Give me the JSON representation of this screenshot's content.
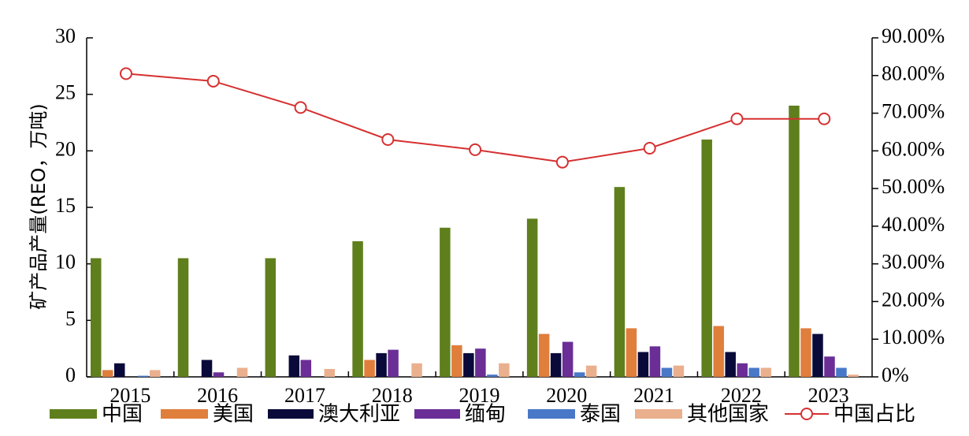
{
  "chart_data": {
    "type": "bar",
    "title": "",
    "xlabel": "",
    "ylabel": "矿产品产量(REO，万吨)",
    "categories": [
      "2015",
      "2016",
      "2017",
      "2018",
      "2019",
      "2020",
      "2021",
      "2022",
      "2023"
    ],
    "ylim": [
      0,
      30
    ],
    "y2lim": [
      0,
      90
    ],
    "yticks": [
      "0",
      "5",
      "10",
      "15",
      "20",
      "25",
      "30"
    ],
    "y2ticks": [
      "0%",
      "10.00%",
      "20.00%",
      "30.00%",
      "40.00%",
      "50.00%",
      "60.00%",
      "70.00%",
      "80.00%",
      "90.00%"
    ],
    "series": [
      {
        "name": "中国",
        "color": "#5f7f1c",
        "values": [
          10.5,
          10.5,
          10.5,
          12.0,
          13.2,
          14.0,
          16.8,
          21.0,
          24.0
        ]
      },
      {
        "name": "美国",
        "color": "#e07e3c",
        "values": [
          0.6,
          0.0,
          0.0,
          1.5,
          2.8,
          3.8,
          4.3,
          4.5,
          4.3
        ]
      },
      {
        "name": "澳大利亚",
        "color": "#0a0a3a",
        "values": [
          1.2,
          1.5,
          1.9,
          2.1,
          2.1,
          2.1,
          2.2,
          2.2,
          3.8
        ]
      },
      {
        "name": "缅甸",
        "color": "#6a2e96",
        "values": [
          0.0,
          0.4,
          1.5,
          2.4,
          2.5,
          3.1,
          2.7,
          1.2,
          1.8
        ]
      },
      {
        "name": "泰国",
        "color": "#4a78c8",
        "values": [
          0.1,
          0.0,
          0.0,
          0.0,
          0.2,
          0.4,
          0.8,
          0.8,
          0.8
        ]
      },
      {
        "name": "其他国家",
        "color": "#eab08e",
        "values": [
          0.6,
          0.8,
          0.7,
          1.2,
          1.2,
          1.0,
          1.0,
          0.8,
          0.2
        ]
      }
    ],
    "line": {
      "name": "中国占比",
      "color": "#d63030",
      "values": [
        80.5,
        78.5,
        71.5,
        63.0,
        60.3,
        57.0,
        60.7,
        68.5,
        68.5
      ]
    },
    "legend_position": "bottom",
    "grid": false
  }
}
